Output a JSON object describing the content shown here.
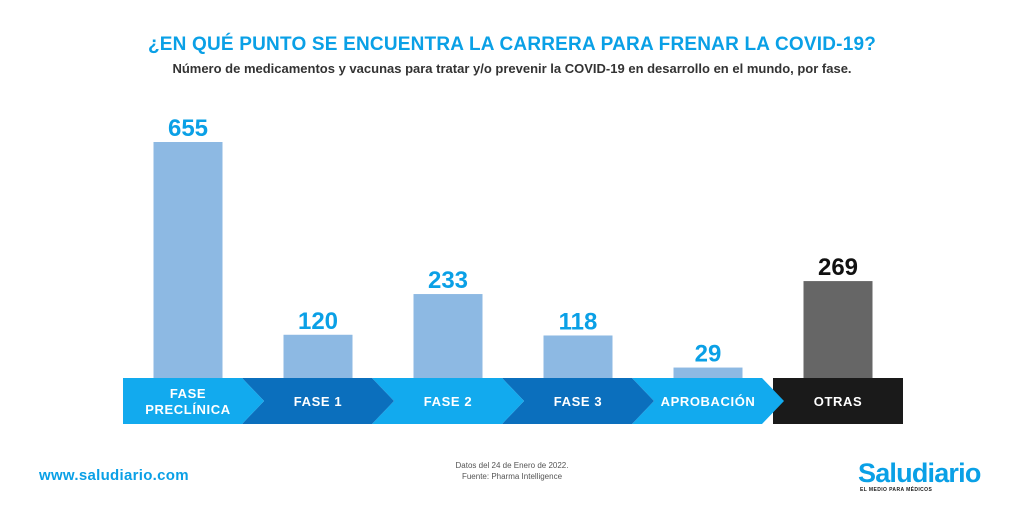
{
  "colors": {
    "accent": "#0aa0e6",
    "bar_phase": "#8db9e3",
    "bar_other": "#666666",
    "label_other": "#111111",
    "band_light": "#12aaee",
    "band_dark": "#0b6fbd",
    "band_other": "#1a1a1a"
  },
  "chart_data": {
    "type": "bar",
    "title": "¿EN QUÉ PUNTO SE ENCUENTRA LA CARRERA PARA FRENAR LA COVID-19?",
    "subtitle": "Número de medicamentos y vacunas para tratar y/o prevenir la COVID-19 en desarrollo en el mundo, por fase.",
    "categories": [
      [
        "FASE",
        "PRECLÍNICA"
      ],
      [
        "FASE 1"
      ],
      [
        "FASE 2"
      ],
      [
        "FASE 3"
      ],
      [
        "APROBACIÓN"
      ],
      [
        "OTRAS"
      ]
    ],
    "values": [
      655,
      120,
      233,
      118,
      29,
      269
    ],
    "ylim": [
      0,
      700
    ],
    "grid": false,
    "legend": "none",
    "data_labels": true
  },
  "footer": {
    "website": "www.saludiario.com",
    "date_note": "Datos del 24 de Enero de 2022.",
    "source_note": "Fuente: Pharma Intelligence",
    "logo_name": "Saludiario",
    "logo_tagline": "EL MEDIO PARA MÉDICOS"
  }
}
